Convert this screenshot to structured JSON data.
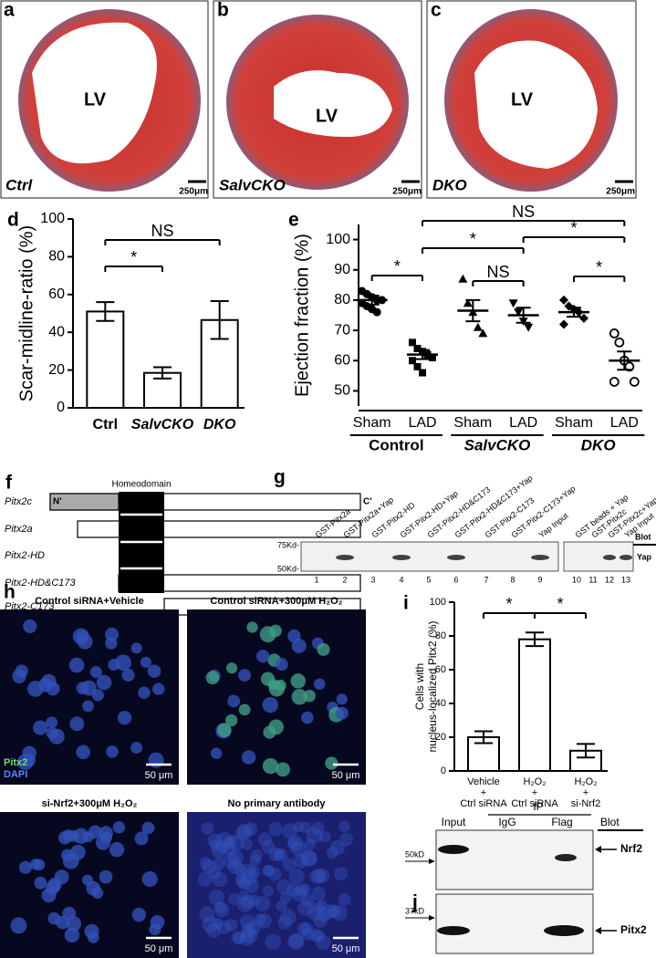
{
  "histology": [
    {
      "letter": "a",
      "cavity": "LV",
      "genotype": "Ctrl",
      "scale": "250μm"
    },
    {
      "letter": "b",
      "cavity": "LV",
      "genotype": "SalvCKO",
      "scale": "250μm"
    },
    {
      "letter": "c",
      "cavity": "LV",
      "genotype": "DKO",
      "scale": "250μm"
    }
  ],
  "domains": {
    "letter": "f",
    "header": "Homeodomain",
    "n_term": "N'",
    "c_term": "C'",
    "constructs": [
      "Pitx2c",
      "Pitx2a",
      "Pitx2-HD",
      "Pitx2-HD&C173",
      "Pitx2-C173"
    ]
  },
  "pulldown": {
    "letter": "g",
    "lanes": [
      "GST-Pitx2a",
      "GST-Pitx2a+Yap",
      "GST-Pitx2-HD",
      "GST-Pitx2-HD+Yap",
      "GST-Pitx2-HD&C173",
      "GST-Pitx2-HD&C173+Yap",
      "GST-Pitx2-C173",
      "GST-Pitx2-C173+Yap",
      "Yap Input",
      "GST beads + Yap",
      "GST-Pitx2c",
      "GST-Pitx2c+Yap",
      "Yap Input"
    ],
    "lane_numbers": [
      "1",
      "2",
      "3",
      "4",
      "5",
      "6",
      "7",
      "8",
      "9",
      "10",
      "11",
      "12",
      "13"
    ],
    "markers": [
      "75Kd-",
      "50Kd-"
    ],
    "blot_label": "Blot",
    "band_label": "Yap"
  },
  "immunostaining": {
    "letter": "h",
    "conditions": [
      "Control siRNA+Vehicle",
      "Control siRNA+300μM H₂O₂",
      "si-Nrf2+300μM H₂O₂",
      "No primary antibody"
    ],
    "stains": [
      "Pitx2",
      "DAPI"
    ],
    "scale": "50 μm"
  },
  "co_ip": {
    "letter": "j",
    "lanes": [
      "Input",
      "IgG",
      "Flag"
    ],
    "ip_label": "IP",
    "blot_label": "Blot",
    "targets": [
      "Nrf2",
      "Pitx2"
    ],
    "markers": [
      "50kD",
      "37kD"
    ]
  },
  "chart_data": [
    {
      "panel": "d",
      "type": "bar",
      "ylabel": "Scar-midline-ratio (%)",
      "categories": [
        "Ctrl",
        "SalvCKO",
        "DKO"
      ],
      "values": [
        51,
        18.5,
        46.5
      ],
      "errors": [
        5,
        3,
        10
      ],
      "ylim": [
        0,
        100
      ],
      "yticks": [
        0,
        20,
        40,
        60,
        80,
        100
      ],
      "significance": [
        {
          "label": "*",
          "between": [
            0,
            1
          ]
        },
        {
          "label": "NS",
          "between": [
            0,
            2
          ]
        }
      ]
    },
    {
      "panel": "e",
      "type": "scatter",
      "ylabel": "Ejection fraction (%)",
      "categories": [
        "Sham",
        "LAD",
        "Sham",
        "LAD",
        "Sham",
        "LAD"
      ],
      "groups": [
        "Control",
        "SalvCKO",
        "DKO"
      ],
      "markers": [
        "circle",
        "square",
        "triangle",
        "triangle-down",
        "diamond",
        "open-circle"
      ],
      "points": [
        [
          83,
          82,
          81,
          80,
          80,
          79,
          78,
          77,
          76
        ],
        [
          66,
          64,
          63,
          62,
          61,
          60,
          58,
          56
        ],
        [
          87,
          79,
          76,
          71,
          69
        ],
        [
          79,
          76,
          73,
          71
        ],
        [
          80,
          78,
          77,
          76,
          74,
          72
        ],
        [
          69,
          66,
          60,
          58,
          53,
          53
        ]
      ],
      "means": [
        80,
        62,
        76.5,
        75,
        76,
        60
      ],
      "errors": [
        1.5,
        1.5,
        3.5,
        2.5,
        1.5,
        3
      ],
      "ylim": [
        45,
        105
      ],
      "yticks": [
        50,
        60,
        70,
        80,
        90,
        100
      ],
      "significance": [
        {
          "label": "*",
          "between": [
            0,
            1
          ]
        },
        {
          "label": "NS",
          "between": [
            2,
            3
          ]
        },
        {
          "label": "*",
          "between": [
            4,
            5
          ]
        },
        {
          "label": "*",
          "between": [
            1,
            3
          ]
        },
        {
          "label": "*",
          "between": [
            3,
            5
          ]
        },
        {
          "label": "NS",
          "between": [
            1,
            5
          ]
        }
      ]
    },
    {
      "panel": "i",
      "type": "bar",
      "ylabel": [
        "Cells with",
        "nucleus-localized Pitx2 (%)"
      ],
      "categories": [
        [
          "Vehicle",
          "+",
          "Ctrl siRNA"
        ],
        [
          "H₂O₂",
          "+",
          "Ctrl siRNA"
        ],
        [
          "H₂O₂",
          "+",
          "si-Nrf2"
        ]
      ],
      "values": [
        20,
        78,
        12
      ],
      "errors": [
        3.5,
        4,
        4
      ],
      "ylim": [
        0,
        100
      ],
      "yticks": [
        0,
        20,
        40,
        60,
        80,
        100
      ],
      "significance": [
        {
          "label": "*",
          "between": [
            0,
            1
          ]
        },
        {
          "label": "*",
          "between": [
            1,
            2
          ]
        }
      ]
    }
  ]
}
